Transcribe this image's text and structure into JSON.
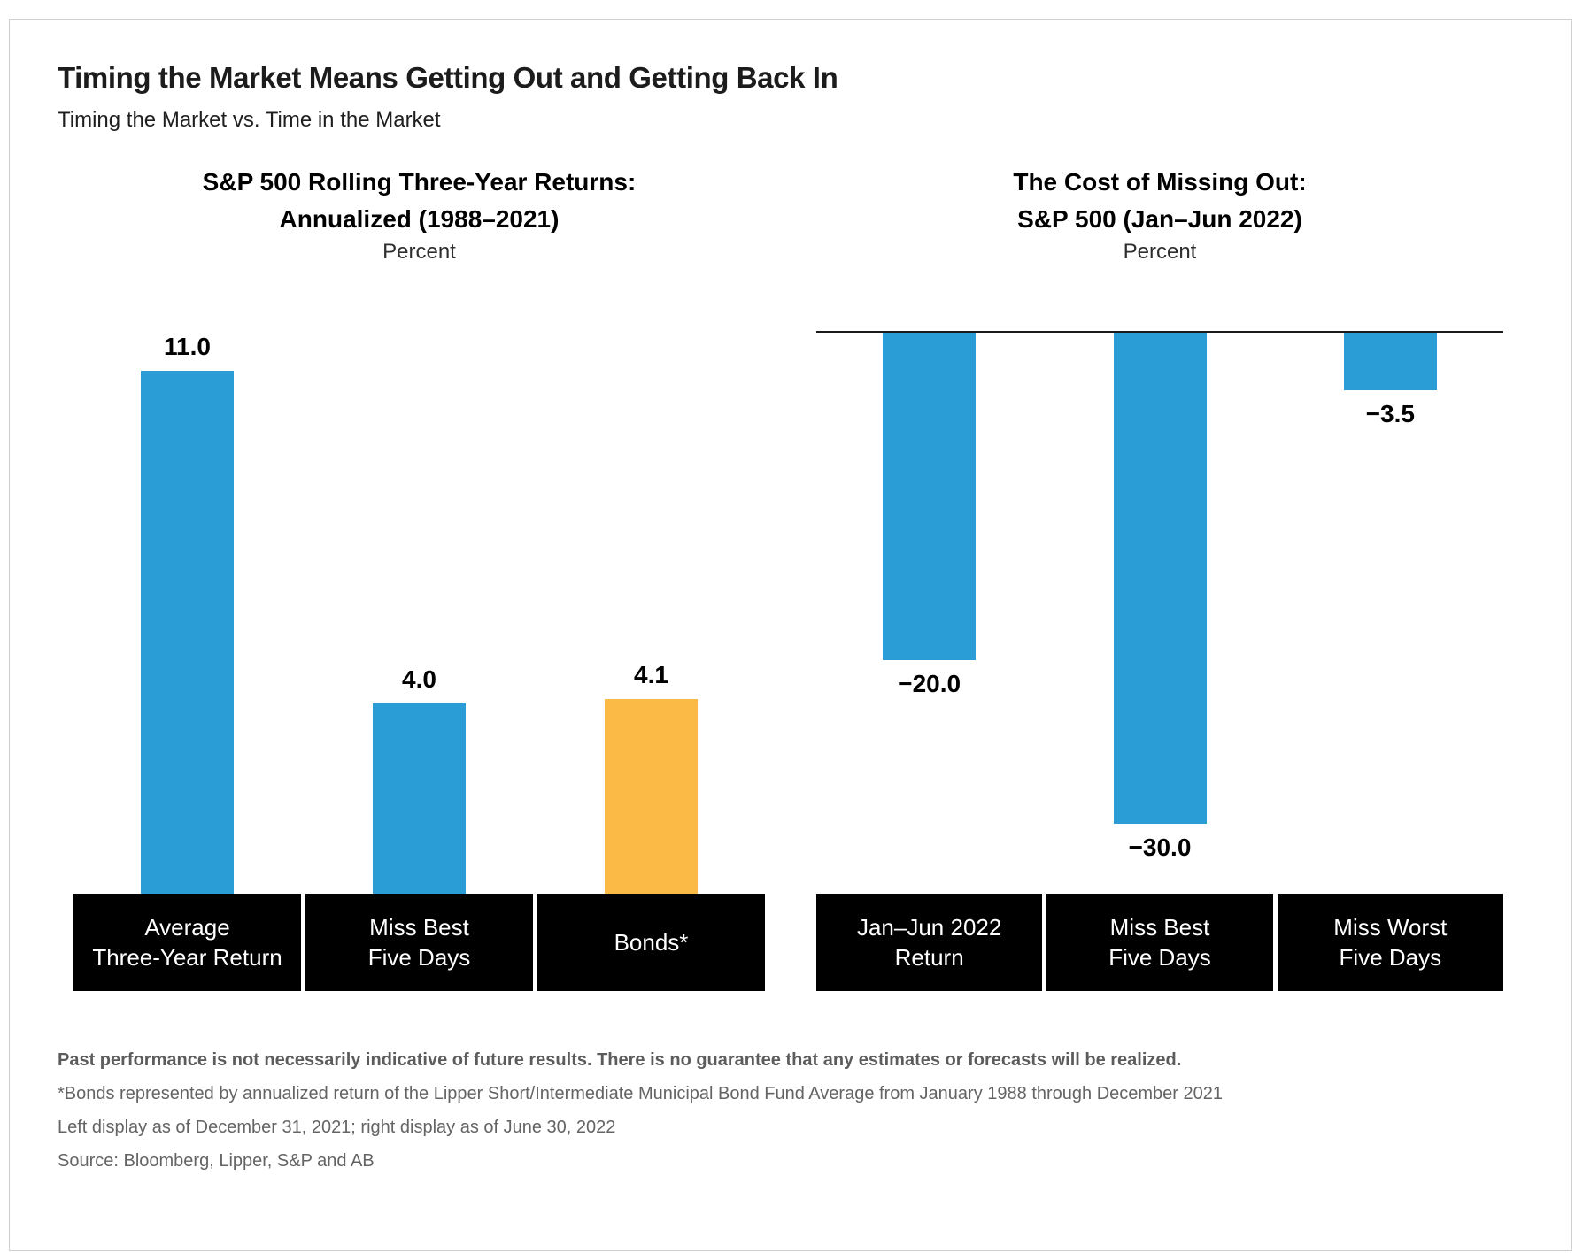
{
  "header": {
    "title": "Timing the Market Means Getting Out and Getting Back In",
    "subtitle": "Timing the Market vs. Time in the Market"
  },
  "colors": {
    "bar_blue": "#2A9DD6",
    "bar_yellow": "#FBB946",
    "category_box_bg": "#000000",
    "category_box_text": "#FFFFFF",
    "baseline": "#1A1A1A",
    "footnote_gray": "#646464"
  },
  "chart_data": [
    {
      "type": "bar",
      "title": "S&P 500 Rolling Three-Year Returns: Annualized (1988–2021)",
      "title_lines": [
        "S&P 500 Rolling Three-Year Returns:",
        "Annualized (1988–2021)"
      ],
      "ylabel": "Percent",
      "categories": [
        "Average Three-Year Return",
        "Miss Best Five Days",
        "Bonds*"
      ],
      "category_lines": [
        [
          "Average",
          "Three-Year Return"
        ],
        [
          "Miss Best",
          "Five Days"
        ],
        [
          "Bonds*"
        ]
      ],
      "values": [
        11.0,
        4.0,
        4.1
      ],
      "value_labels": [
        "11.0",
        "4.0",
        "4.1"
      ],
      "value_label_position": "above",
      "bar_colors": [
        "#2A9DD6",
        "#2A9DD6",
        "#FBB946"
      ],
      "ylim": [
        0,
        12
      ],
      "grid": false,
      "legend": "none",
      "bar_direction": "up"
    },
    {
      "type": "bar",
      "title": "The Cost of Missing Out: S&P 500 (Jan–Jun 2022)",
      "title_lines": [
        "The Cost of Missing Out:",
        "S&P 500 (Jan–Jun 2022)"
      ],
      "ylabel": "Percent",
      "categories": [
        "Jan–Jun 2022 Return",
        "Miss Best Five Days",
        "Miss Worst Five Days"
      ],
      "category_lines": [
        [
          "Jan–Jun 2022",
          "Return"
        ],
        [
          "Miss Best",
          "Five Days"
        ],
        [
          "Miss Worst",
          "Five Days"
        ]
      ],
      "values": [
        -20.0,
        -30.0,
        -3.5
      ],
      "value_labels": [
        "−20.0",
        "−30.0",
        "−3.5"
      ],
      "value_label_position": "below",
      "bar_colors": [
        "#2A9DD6",
        "#2A9DD6",
        "#2A9DD6"
      ],
      "ylim": [
        -33,
        0
      ],
      "grid": false,
      "legend": "none",
      "bar_direction": "down"
    }
  ],
  "footnotes": {
    "disclaimer": "Past performance is not necessarily indicative of future results. There is no guarantee that any estimates or forecasts will be realized.",
    "bonds_note": "*Bonds represented by annualized return of the Lipper Short/Intermediate Municipal Bond Fund Average from January 1988 through December 2021",
    "as_of": "Left display as of December 31, 2021; right display as of June 30, 2022",
    "source": "Source: Bloomberg, Lipper, S&P and AB"
  }
}
